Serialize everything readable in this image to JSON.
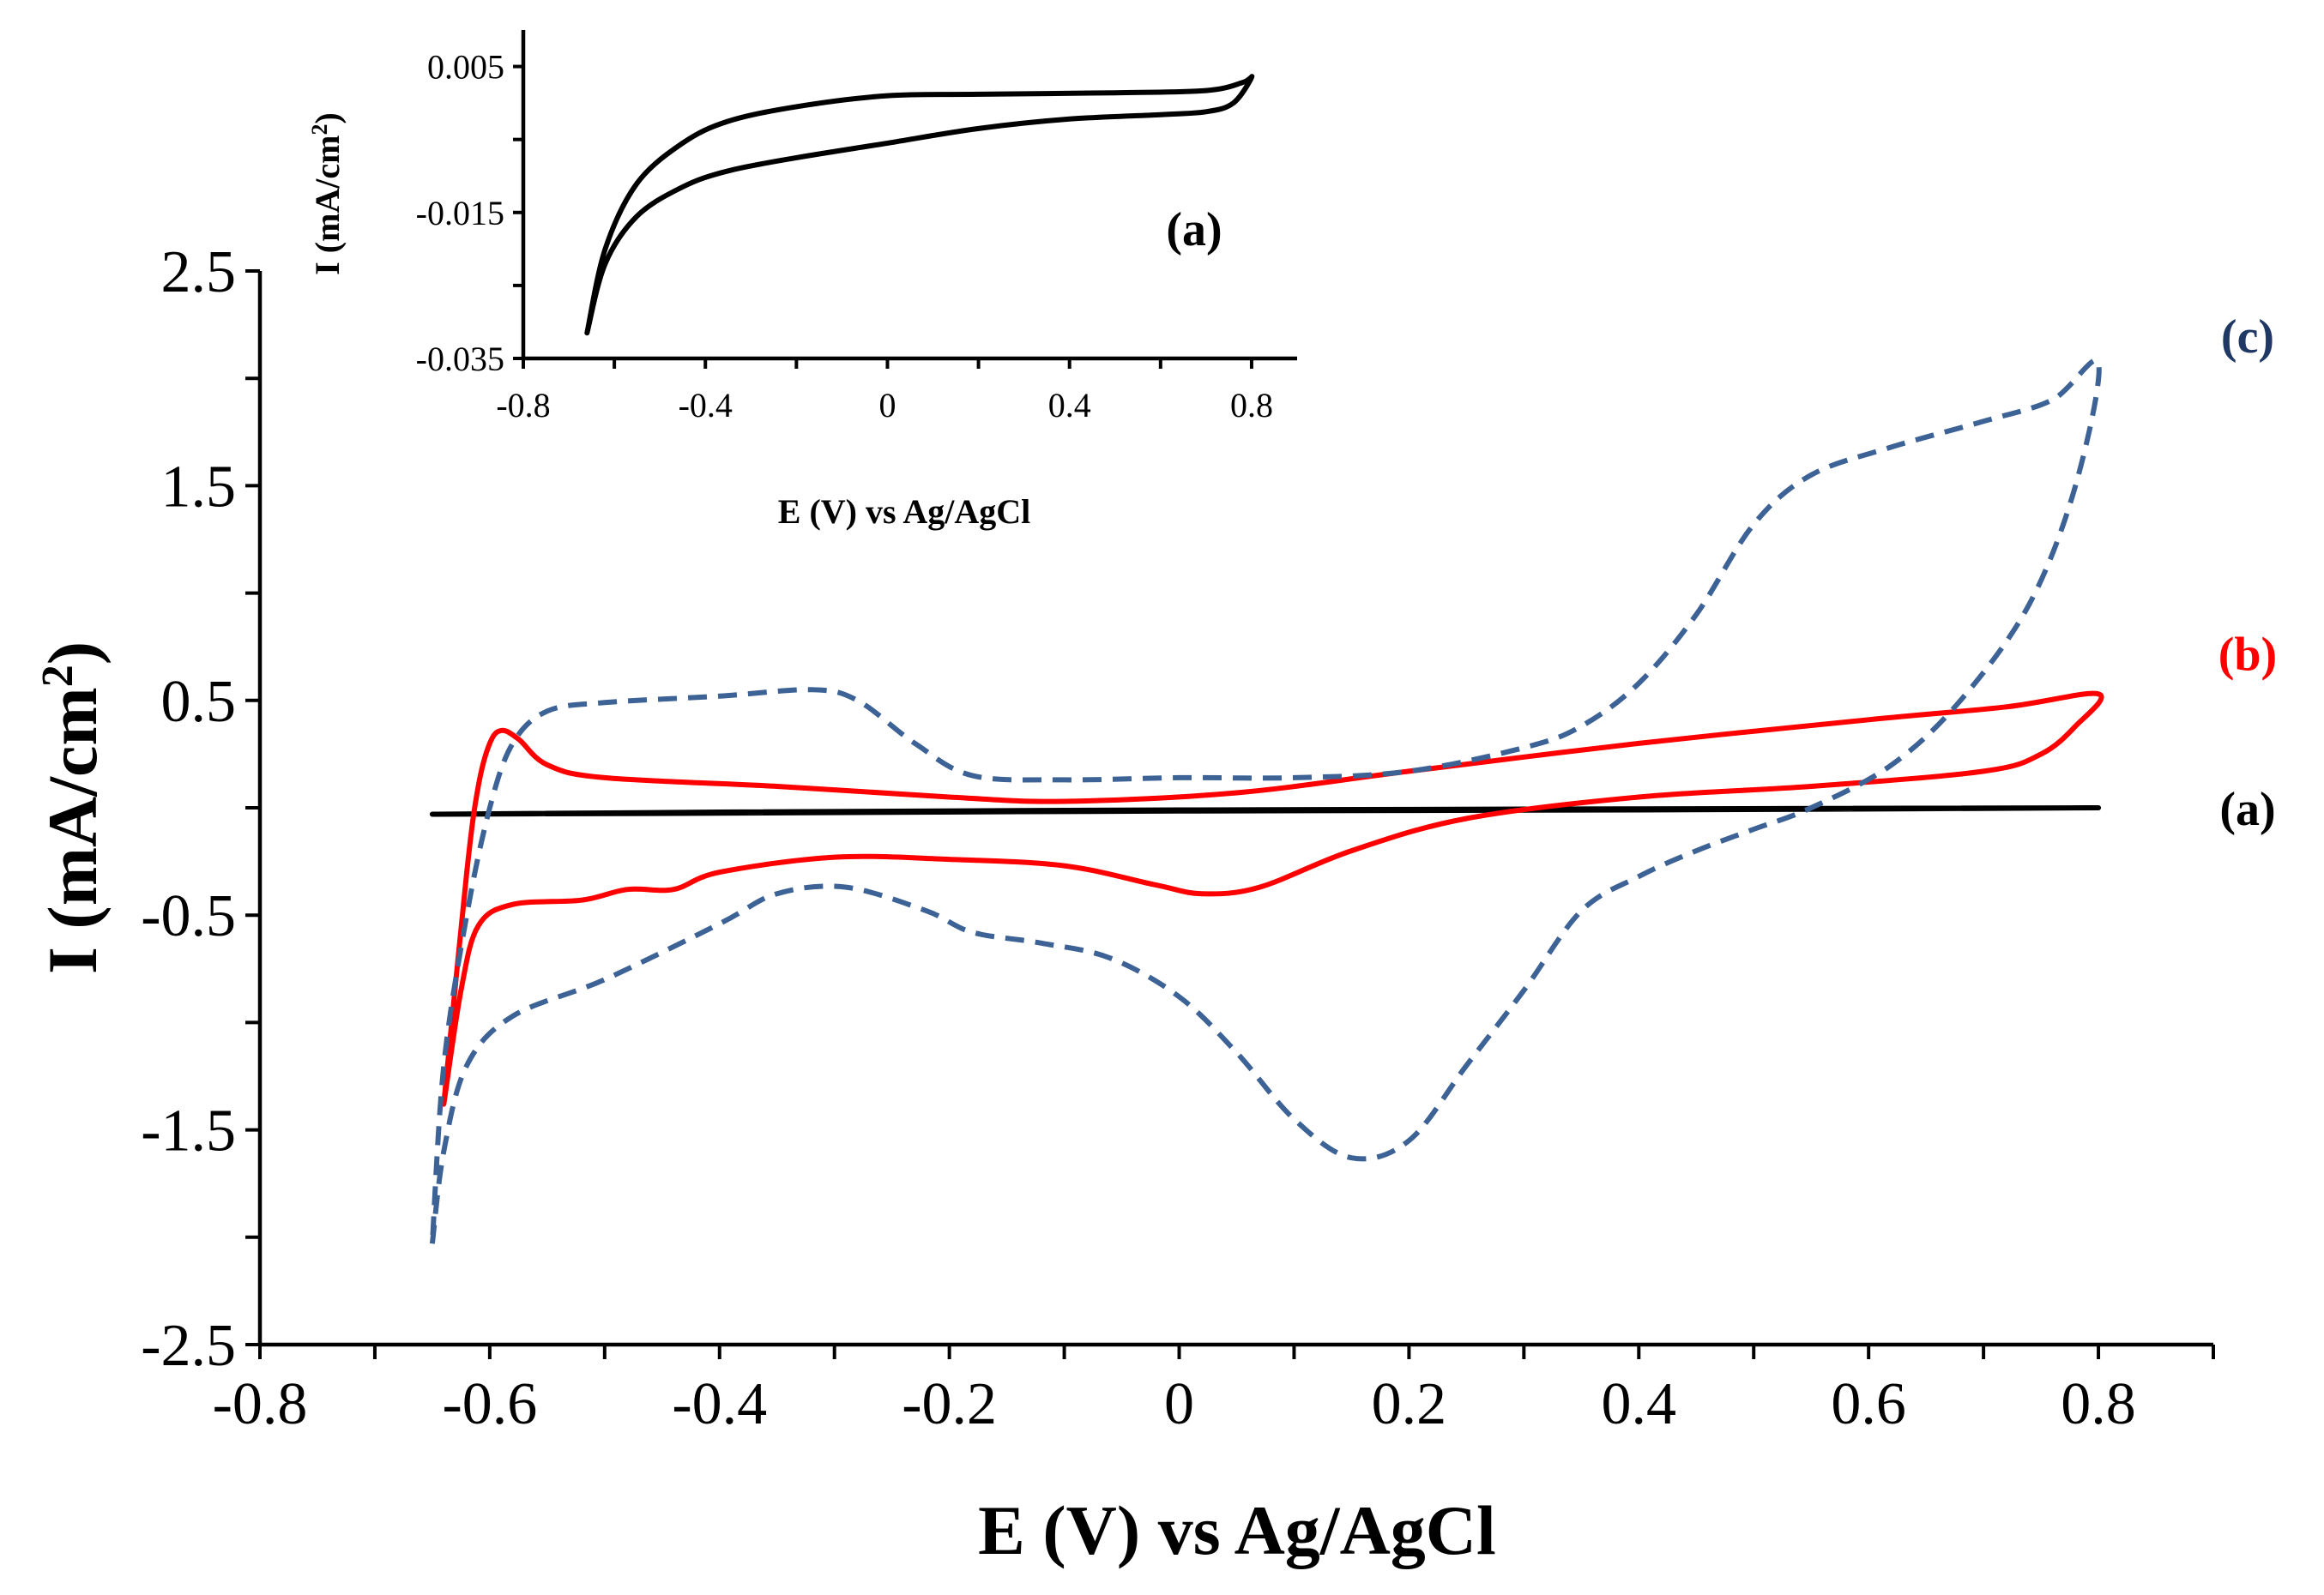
{
  "chart_data": [
    {
      "id": "main",
      "type": "line",
      "xlabel": "E (V) vs Ag/AgCl",
      "ylabel": "I (mA/cm",
      "ylabel_sup": "2",
      "ylabel_close": ")",
      "xlim": [
        -0.8,
        0.9
      ],
      "ylim": [
        -2.5,
        2.5
      ],
      "xticks": [
        -0.8,
        -0.6,
        -0.4,
        -0.2,
        0,
        0.2,
        0.4,
        0.6,
        0.8
      ],
      "xtick_labels": [
        "-0.8",
        "-0.6",
        "-0.4",
        "-0.2",
        "0",
        "0.2",
        "0.4",
        "0.6",
        "0.8"
      ],
      "yticks": [
        -2.5,
        -1.5,
        -0.5,
        0.5,
        1.5,
        2.5
      ],
      "ytick_labels": [
        "-2.5",
        "-1.5",
        "-0.5",
        "0.5",
        "1.5",
        "2.5"
      ],
      "series": [
        {
          "name": "(a)",
          "color": "#000000",
          "dash": "solid",
          "points": [
            [
              -0.65,
              -0.03
            ],
            [
              -0.4,
              -0.02
            ],
            [
              0,
              -0.01
            ],
            [
              0.4,
              -0.005
            ],
            [
              0.8,
              0.0
            ],
            [
              0.4,
              -0.01
            ],
            [
              0,
              -0.015
            ],
            [
              -0.4,
              -0.025
            ],
            [
              -0.65,
              -0.03
            ]
          ]
        },
        {
          "name": "(b)",
          "color": "#ff0000",
          "dash": "solid",
          "points": [
            [
              -0.64,
              -1.38
            ],
            [
              -0.625,
              -0.85
            ],
            [
              -0.61,
              -0.55
            ],
            [
              -0.58,
              -0.45
            ],
            [
              -0.52,
              -0.43
            ],
            [
              -0.48,
              -0.38
            ],
            [
              -0.44,
              -0.38
            ],
            [
              -0.4,
              -0.3
            ],
            [
              -0.3,
              -0.23
            ],
            [
              -0.2,
              -0.24
            ],
            [
              -0.1,
              -0.27
            ],
            [
              -0.02,
              -0.36
            ],
            [
              0.02,
              -0.4
            ],
            [
              0.07,
              -0.37
            ],
            [
              0.15,
              -0.2
            ],
            [
              0.25,
              -0.05
            ],
            [
              0.4,
              0.05
            ],
            [
              0.55,
              0.1
            ],
            [
              0.7,
              0.17
            ],
            [
              0.75,
              0.25
            ],
            [
              0.78,
              0.38
            ],
            [
              0.8,
              0.53
            ],
            [
              0.72,
              0.47
            ],
            [
              0.6,
              0.41
            ],
            [
              0.4,
              0.3
            ],
            [
              0.2,
              0.17
            ],
            [
              0.05,
              0.07
            ],
            [
              -0.1,
              0.03
            ],
            [
              -0.2,
              0.05
            ],
            [
              -0.35,
              0.1
            ],
            [
              -0.5,
              0.14
            ],
            [
              -0.55,
              0.2
            ],
            [
              -0.575,
              0.32
            ],
            [
              -0.59,
              0.36
            ],
            [
              -0.6,
              0.3
            ],
            [
              -0.61,
              0.1
            ],
            [
              -0.62,
              -0.3
            ],
            [
              -0.64,
              -1.38
            ]
          ]
        },
        {
          "name": "(c)",
          "color": "#3d6396",
          "dash": "dashed",
          "points": [
            [
              -0.65,
              -2.03
            ],
            [
              -0.64,
              -1.6
            ],
            [
              -0.62,
              -1.2
            ],
            [
              -0.58,
              -0.97
            ],
            [
              -0.5,
              -0.8
            ],
            [
              -0.4,
              -0.54
            ],
            [
              -0.35,
              -0.4
            ],
            [
              -0.29,
              -0.37
            ],
            [
              -0.22,
              -0.48
            ],
            [
              -0.18,
              -0.58
            ],
            [
              -0.12,
              -0.63
            ],
            [
              -0.06,
              -0.7
            ],
            [
              0.0,
              -0.88
            ],
            [
              0.05,
              -1.14
            ],
            [
              0.1,
              -1.45
            ],
            [
              0.15,
              -1.63
            ],
            [
              0.2,
              -1.55
            ],
            [
              0.25,
              -1.2
            ],
            [
              0.3,
              -0.85
            ],
            [
              0.35,
              -0.48
            ],
            [
              0.4,
              -0.32
            ],
            [
              0.45,
              -0.2
            ],
            [
              0.5,
              -0.1
            ],
            [
              0.55,
              0.0
            ],
            [
              0.62,
              0.2
            ],
            [
              0.68,
              0.5
            ],
            [
              0.74,
              0.95
            ],
            [
              0.78,
              1.5
            ],
            [
              0.8,
              2.07
            ],
            [
              0.76,
              1.9
            ],
            [
              0.7,
              1.8
            ],
            [
              0.62,
              1.68
            ],
            [
              0.55,
              1.55
            ],
            [
              0.5,
              1.32
            ],
            [
              0.45,
              0.9
            ],
            [
              0.4,
              0.58
            ],
            [
              0.35,
              0.38
            ],
            [
              0.3,
              0.28
            ],
            [
              0.2,
              0.17
            ],
            [
              0.1,
              0.14
            ],
            [
              0.0,
              0.14
            ],
            [
              -0.1,
              0.13
            ],
            [
              -0.18,
              0.15
            ],
            [
              -0.23,
              0.3
            ],
            [
              -0.28,
              0.5
            ],
            [
              -0.32,
              0.55
            ],
            [
              -0.4,
              0.52
            ],
            [
              -0.5,
              0.49
            ],
            [
              -0.55,
              0.45
            ],
            [
              -0.58,
              0.3
            ],
            [
              -0.6,
              0.0
            ],
            [
              -0.62,
              -0.5
            ],
            [
              -0.64,
              -1.2
            ],
            [
              -0.65,
              -2.03
            ]
          ]
        }
      ],
      "curve_labels": [
        {
          "text": "(c)",
          "color": "#203864"
        },
        {
          "text": "(b)",
          "color": "#ff0000"
        },
        {
          "text": "(a)",
          "color": "#000000"
        }
      ]
    },
    {
      "id": "inset",
      "type": "line",
      "title": "(a)",
      "xlabel": "E (V)  vs Ag/AgCl",
      "ylabel": "I (mA/cm",
      "ylabel_sup": "2",
      "ylabel_close": ")",
      "xlim": [
        -0.8,
        0.9
      ],
      "ylim": [
        -0.035,
        0.01
      ],
      "xticks": [
        -0.8,
        -0.4,
        0,
        0.4,
        0.8
      ],
      "xtick_labels": [
        "-0.8",
        "-0.4",
        "0",
        "0.4",
        "0.8"
      ],
      "yticks": [
        -0.035,
        -0.015,
        0.005
      ],
      "ytick_labels": [
        "-0.035",
        "-0.015",
        "0.005"
      ],
      "series": [
        {
          "name": "(a)",
          "color": "#000000",
          "dash": "solid",
          "points": [
            [
              -0.66,
              -0.0315
            ],
            [
              -0.62,
              -0.022
            ],
            [
              -0.55,
              -0.0155
            ],
            [
              -0.45,
              -0.0115
            ],
            [
              -0.35,
              -0.0093
            ],
            [
              -0.2,
              -0.0075
            ],
            [
              0.0,
              -0.0055
            ],
            [
              0.2,
              -0.0035
            ],
            [
              0.4,
              -0.0022
            ],
            [
              0.6,
              -0.0016
            ],
            [
              0.7,
              -0.0012
            ],
            [
              0.76,
              0.0
            ],
            [
              0.8,
              0.0035
            ],
            [
              0.78,
              0.0028
            ],
            [
              0.7,
              0.0017
            ],
            [
              0.5,
              0.0014
            ],
            [
              0.2,
              0.0012
            ],
            [
              0.0,
              0.001
            ],
            [
              -0.2,
              -0.0005
            ],
            [
              -0.35,
              -0.0025
            ],
            [
              -0.45,
              -0.0055
            ],
            [
              -0.55,
              -0.011
            ],
            [
              -0.62,
              -0.02
            ],
            [
              -0.66,
              -0.0315
            ]
          ]
        }
      ]
    }
  ]
}
